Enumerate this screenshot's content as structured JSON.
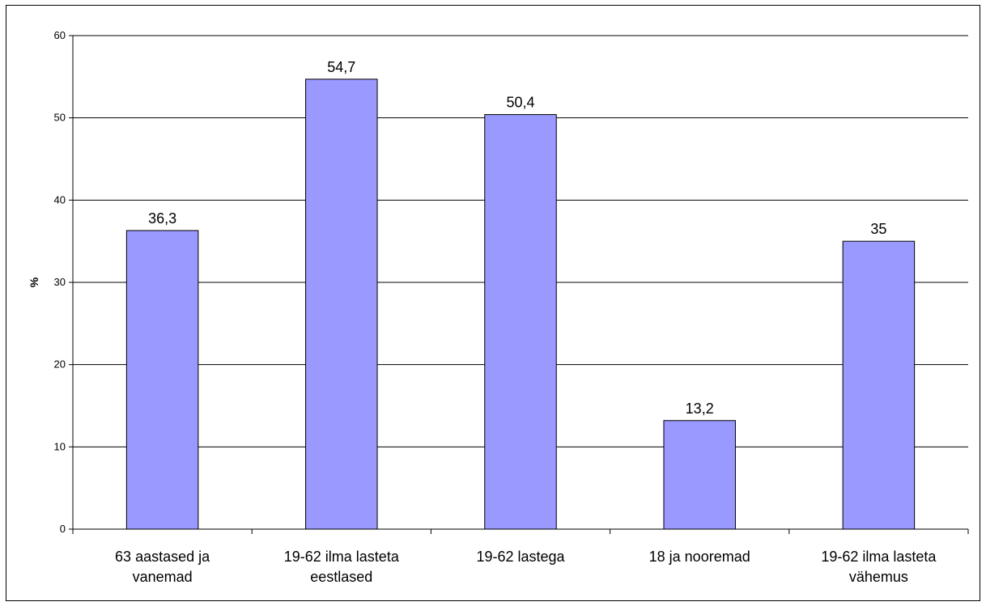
{
  "chart_data": {
    "type": "bar",
    "categories": [
      [
        "63 aastased ja",
        "vanemad"
      ],
      [
        "19-62 ilma lasteta",
        "eestlased"
      ],
      [
        "19-62 lastega"
      ],
      [
        "18 ja nooremad"
      ],
      [
        "19-62 ilma lasteta",
        "vähemus"
      ]
    ],
    "values": [
      36.3,
      54.7,
      50.4,
      13.2,
      35
    ],
    "value_labels": [
      "36,3",
      "54,7",
      "50,4",
      "13,2",
      "35"
    ],
    "ylabel": "%",
    "ylim": [
      0,
      60
    ],
    "yticks": [
      0,
      10,
      20,
      30,
      40,
      50,
      60
    ],
    "grid": true,
    "bar_color": "#9999ff",
    "bar_stroke": "#000000"
  }
}
